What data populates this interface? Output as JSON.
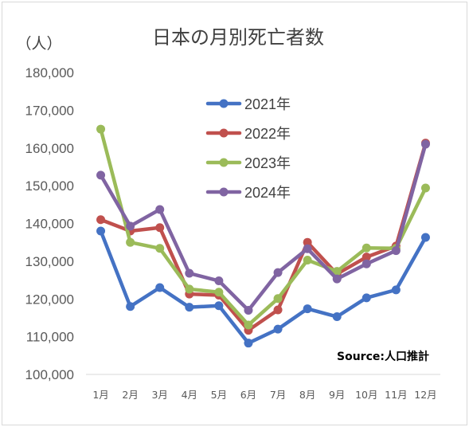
{
  "chart_data": {
    "type": "line",
    "title": "日本の月別死亡者数",
    "ylabel": "（人）",
    "source": "Source:人口推計",
    "categories": [
      "1月",
      "2月",
      "3月",
      "4月",
      "5月",
      "6月",
      "7月",
      "8月",
      "9月",
      "10月",
      "11月",
      "12月"
    ],
    "ylim": [
      100000,
      180000
    ],
    "yticks": [
      100000,
      110000,
      120000,
      130000,
      140000,
      150000,
      160000,
      170000,
      180000
    ],
    "ytick_labels": [
      "100,000",
      "110,000",
      "120,000",
      "130,000",
      "140,000",
      "150,000",
      "160,000",
      "170,000",
      "180,000"
    ],
    "grid": false,
    "legend_position": "top-center",
    "series": [
      {
        "name": "2021年",
        "color": "#4472c4",
        "values": [
          138000,
          118000,
          123000,
          117800,
          118200,
          108300,
          112000,
          117400,
          115300,
          120300,
          122400,
          136300
        ]
      },
      {
        "name": "2022年",
        "color": "#c0504d",
        "values": [
          141000,
          138000,
          138900,
          121300,
          121000,
          111700,
          117100,
          135000,
          126600,
          131100,
          134000,
          161300
        ]
      },
      {
        "name": "2023年",
        "color": "#9bbb59",
        "values": [
          165000,
          135000,
          133400,
          122600,
          121800,
          113100,
          120100,
          130300,
          127300,
          133500,
          133400,
          149400
        ]
      },
      {
        "name": "2024年",
        "color": "#8064a2",
        "values": [
          152800,
          139300,
          143700,
          126800,
          124800,
          117000,
          127000,
          133300,
          125300,
          129300,
          132800,
          161000
        ]
      }
    ]
  }
}
